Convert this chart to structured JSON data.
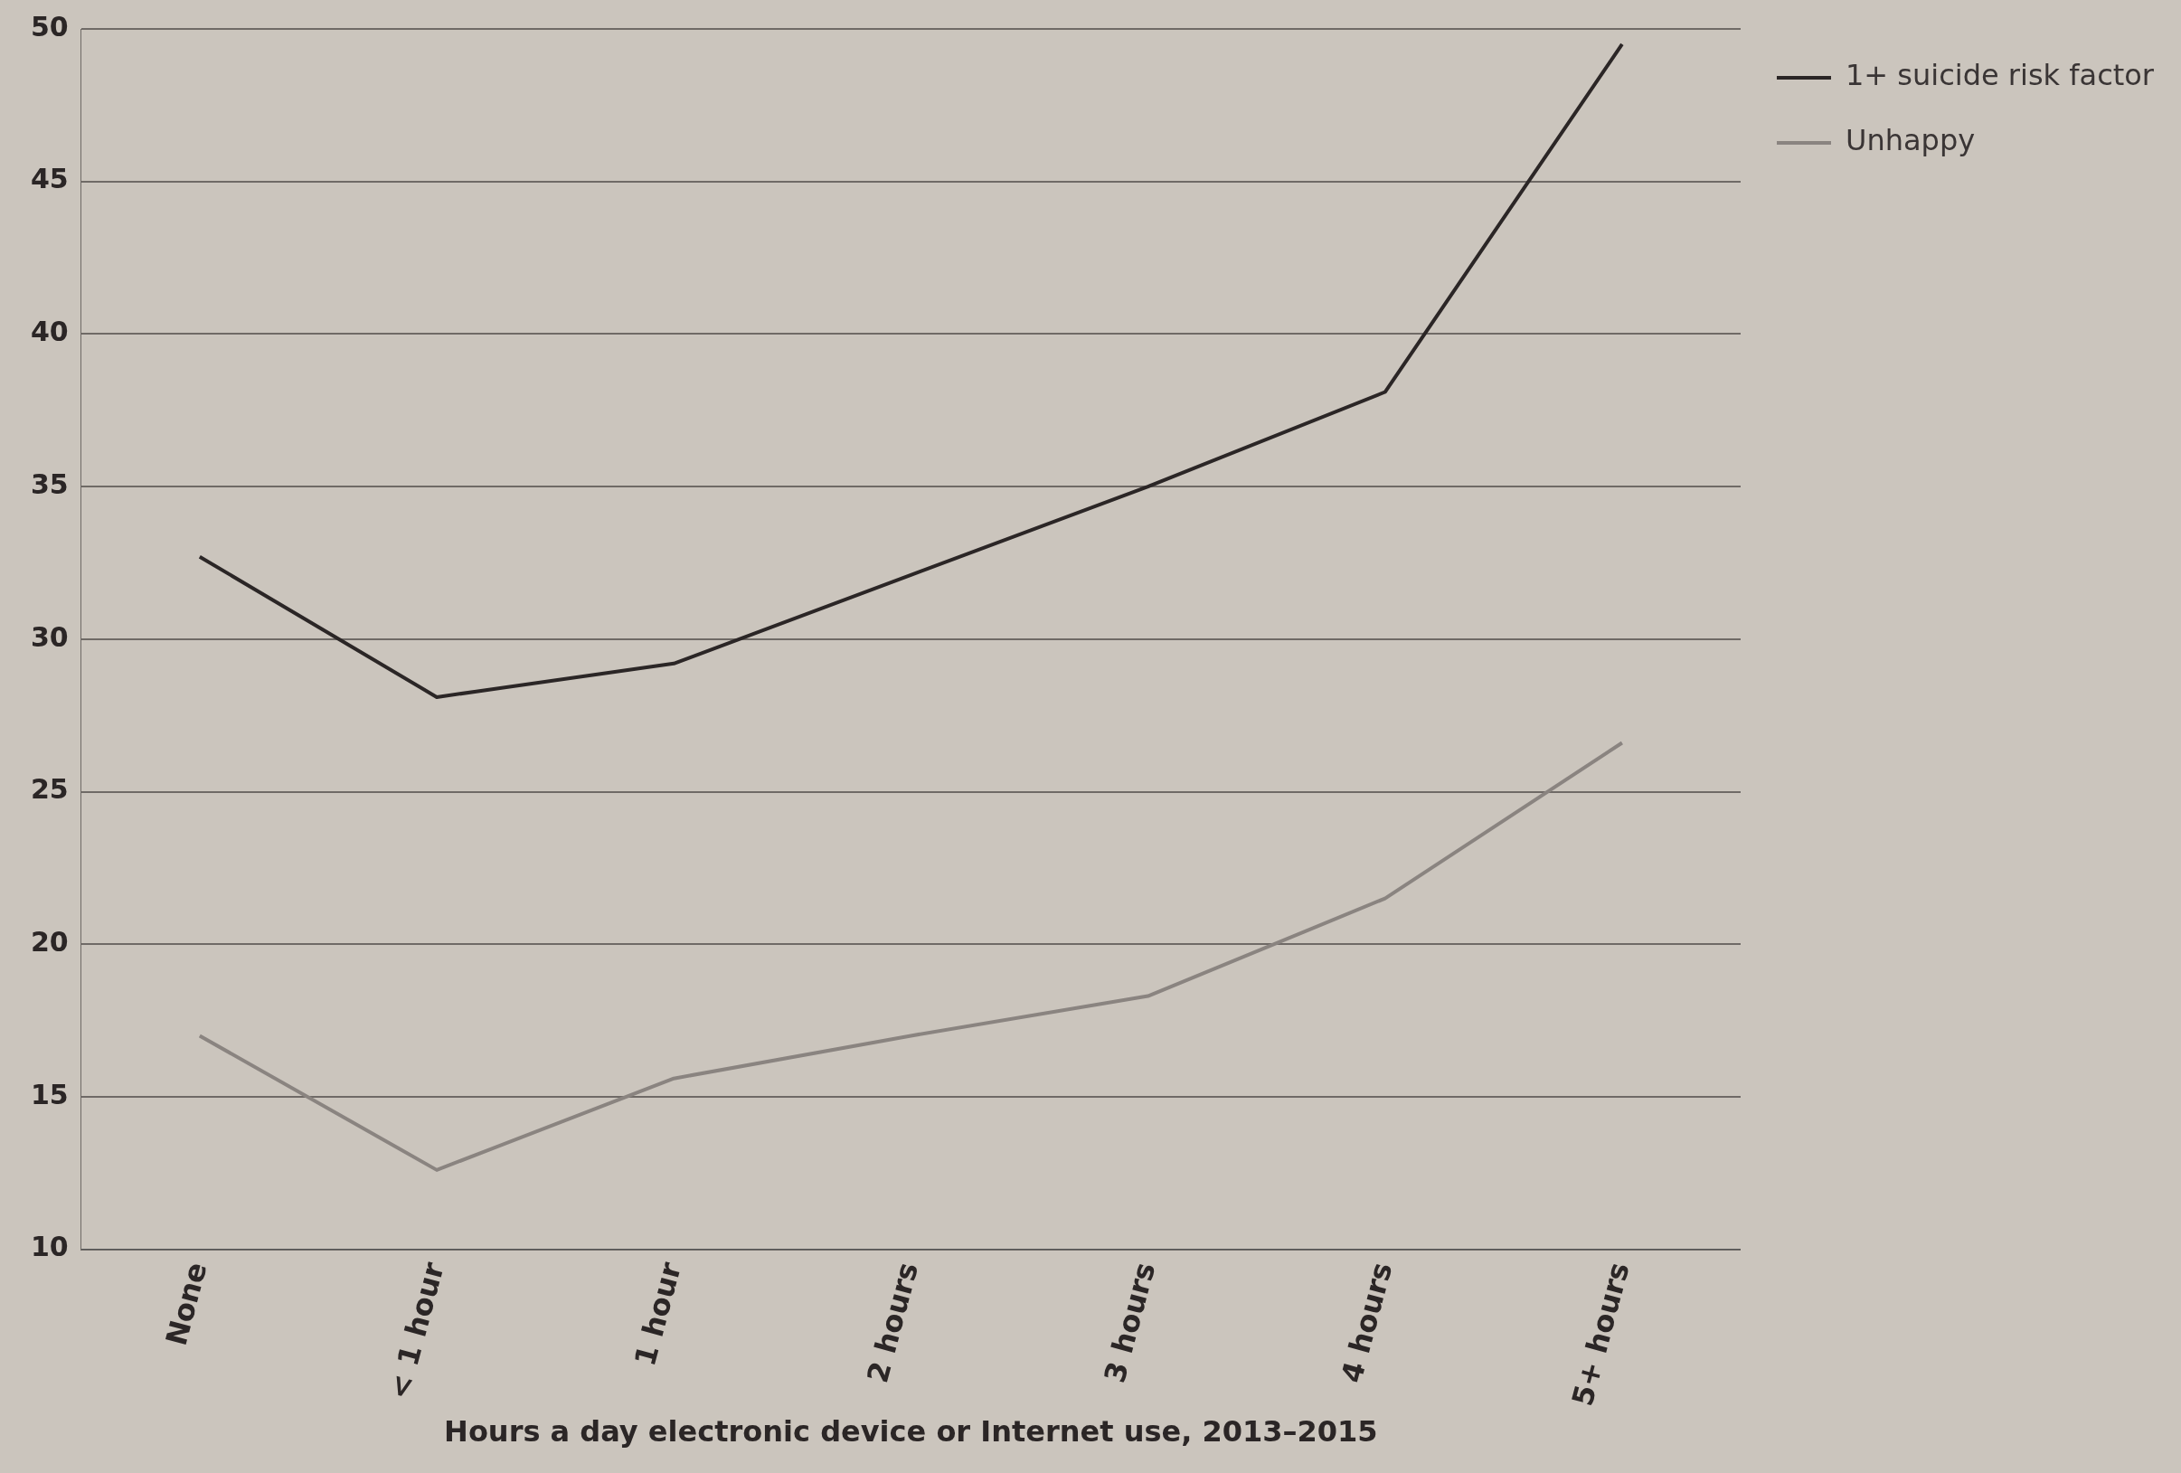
{
  "chart_data": {
    "type": "line",
    "xlabel": "Hours a day electronic device or Internet use, 2013–2015",
    "categories": [
      "None",
      "< 1 hour",
      "1 hour",
      "2 hours",
      "3 hours",
      "4 hours",
      "5+ hours"
    ],
    "series": [
      {
        "name": "1+ suicide risk factor",
        "color": "#2b2626",
        "values": [
          32.7,
          28.1,
          29.2,
          32.1,
          35.0,
          38.1,
          49.5
        ]
      },
      {
        "name": "Unhappy",
        "color": "#8a8480",
        "values": [
          17.0,
          12.6,
          15.6,
          17.0,
          18.3,
          21.5,
          26.6
        ]
      }
    ],
    "ylim": [
      10,
      50
    ],
    "yticks": [
      10,
      15,
      20,
      25,
      30,
      35,
      40,
      45,
      50
    ],
    "grid": "y",
    "legend": "right",
    "marker": "none",
    "line_style": "solid"
  }
}
